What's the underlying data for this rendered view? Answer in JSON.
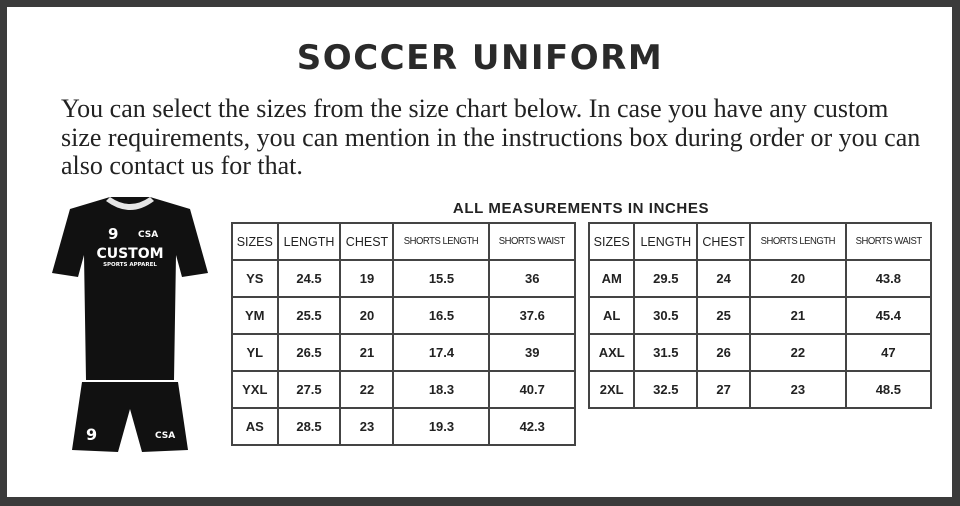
{
  "title": "SOCCER UNIFORM",
  "intro": "You can select the sizes from the size chart below. In case you have any custom size requirements, you can mention in the instructions box during order or you can also contact us for that.",
  "subtitle": "ALL MEASUREMENTS IN INCHES",
  "kit": {
    "number": "9",
    "brand": "CUSTOM",
    "brand_sub": "SPORTS APPAREL",
    "logo": "CSA",
    "colors": {
      "body": "#111111",
      "collar": "#e6e6e6"
    }
  },
  "headers": [
    "SIZES",
    "LENGTH",
    "CHEST",
    "SHORTS LENGTH",
    "SHORTS WAIST"
  ],
  "youth": [
    [
      "YS",
      "24.5",
      "19",
      "15.5",
      "36"
    ],
    [
      "YM",
      "25.5",
      "20",
      "16.5",
      "37.6"
    ],
    [
      "YL",
      "26.5",
      "21",
      "17.4",
      "39"
    ],
    [
      "YXL",
      "27.5",
      "22",
      "18.3",
      "40.7"
    ],
    [
      "AS",
      "28.5",
      "23",
      "19.3",
      "42.3"
    ]
  ],
  "adult": [
    [
      "AM",
      "29.5",
      "24",
      "20",
      "43.8"
    ],
    [
      "AL",
      "30.5",
      "25",
      "21",
      "45.4"
    ],
    [
      "AXL",
      "31.5",
      "26",
      "22",
      "47"
    ],
    [
      "2XL",
      "32.5",
      "27",
      "23",
      "48.5"
    ]
  ]
}
